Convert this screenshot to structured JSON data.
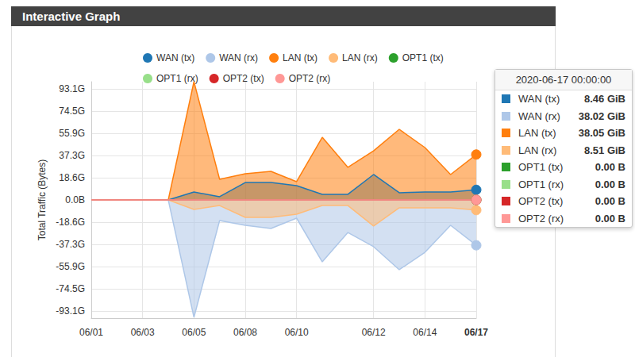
{
  "chart_data": {
    "type": "area",
    "title": "Interactive Graph",
    "y_label": "Total Traffic (Bytes)",
    "categories": [
      "06/01",
      null,
      "06/03",
      null,
      "06/05",
      null,
      "06/08",
      null,
      "06/10",
      null,
      null,
      "06/12",
      null,
      "06/14",
      null,
      "06/17"
    ],
    "series": [
      {
        "name": "WAN (tx)",
        "color": "#1f77b4",
        "values": [
          0,
          0,
          0,
          0,
          6.6,
          2.7,
          14.6,
          14.6,
          12.0,
          4.7,
          4.7,
          21.3,
          6.0,
          6.6,
          6.6,
          8.46
        ]
      },
      {
        "name": "WAN (rx)",
        "color": "#aec7e8",
        "values": [
          0,
          0,
          0,
          0,
          -98.4,
          -17.3,
          -21.3,
          -23.9,
          -15.3,
          -51.9,
          -27.3,
          -39.2,
          -58.5,
          -43.9,
          -21.3,
          -38.02
        ]
      },
      {
        "name": "LAN (tx)",
        "color": "#ff7f0e",
        "values": [
          0,
          0,
          0,
          0,
          99.1,
          17.3,
          21.9,
          23.9,
          15.3,
          52.5,
          27.3,
          41.2,
          59.2,
          43.9,
          21.3,
          38.05
        ]
      },
      {
        "name": "LAN (rx)",
        "color": "#ffbb78",
        "values": [
          0,
          0,
          0,
          0,
          -8.0,
          -4.7,
          -14.6,
          -14.6,
          -12.0,
          -4.7,
          -4.7,
          -21.9,
          -6.6,
          -6.6,
          -6.6,
          -8.51
        ]
      },
      {
        "name": "OPT1 (tx)",
        "color": "#2ca02c",
        "values": [
          0,
          0,
          0,
          0,
          0,
          0,
          0,
          0,
          0,
          0,
          0,
          0,
          0,
          0,
          0,
          0
        ]
      },
      {
        "name": "OPT1 (rx)",
        "color": "#98df8a",
        "values": [
          0,
          0,
          0,
          0,
          0,
          0,
          0,
          0,
          0,
          0,
          0,
          0,
          0,
          0,
          0,
          0
        ]
      },
      {
        "name": "OPT2 (tx)",
        "color": "#d62728",
        "values": [
          0,
          0,
          0,
          0,
          0,
          0,
          0,
          0,
          0,
          0,
          0,
          0,
          0,
          0,
          0,
          0
        ]
      },
      {
        "name": "OPT2 (rx)",
        "color": "#ff9896",
        "values": [
          0,
          0,
          0,
          0,
          0,
          0,
          0,
          0,
          0,
          0,
          0,
          0,
          0,
          0,
          0,
          0
        ]
      }
    ],
    "ylim": [
      -99.1,
      99.1
    ],
    "yticks": [
      {
        "value": 93.1,
        "label": "93.1G"
      },
      {
        "value": 74.5,
        "label": "74.5G"
      },
      {
        "value": 55.9,
        "label": "55.9G"
      },
      {
        "value": 37.3,
        "label": "37.3G"
      },
      {
        "value": 18.6,
        "label": "18.6G"
      },
      {
        "value": 0,
        "label": "0.0B"
      },
      {
        "value": -18.6,
        "label": "-18.6G"
      },
      {
        "value": -37.3,
        "label": "-37.3G"
      },
      {
        "value": -55.9,
        "label": "-55.9G"
      },
      {
        "value": -74.5,
        "label": "-74.5G"
      },
      {
        "value": -93.1,
        "label": "-93.1G"
      }
    ],
    "grid": true,
    "legend": "top",
    "tooltip": {
      "header": "2020-06-17 00:00:00",
      "items": [
        {
          "name": "WAN (tx)",
          "label": "8.46 GiB"
        },
        {
          "name": "WAN (rx)",
          "label": "38.02 GiB"
        },
        {
          "name": "LAN (tx)",
          "label": "38.05 GiB"
        },
        {
          "name": "LAN (rx)",
          "label": "8.51 GiB"
        },
        {
          "name": "OPT1 (tx)",
          "label": "0.00 B"
        },
        {
          "name": "OPT1 (rx)",
          "label": "0.00 B"
        },
        {
          "name": "OPT2 (tx)",
          "label": "0.00 B"
        },
        {
          "name": "OPT2 (rx)",
          "label": "0.00 B"
        }
      ]
    }
  }
}
